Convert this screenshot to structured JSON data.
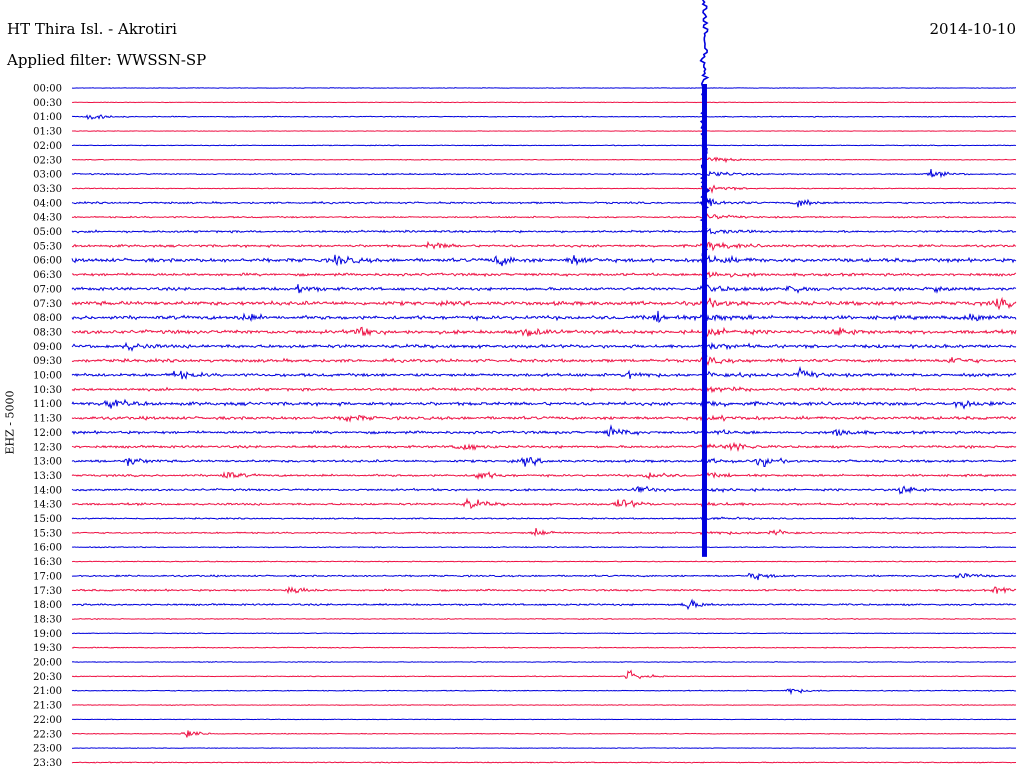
{
  "header": {
    "station": "HT Thira Isl. - Akrotiri",
    "date": "2014-10-10",
    "filter": "Applied filter: WWSSN-SP",
    "channel": "EHZ - 5000"
  },
  "colors": {
    "trace_a": "#0000dd",
    "trace_b": "#ee1144"
  },
  "chart_data": {
    "type": "line",
    "title": "HT Thira Isl. - Akrotiri",
    "date": "2014-10-10",
    "ylabel": "EHZ - 5000",
    "grid": false,
    "row_labels": [
      "00:00",
      "00:30",
      "01:00",
      "01:30",
      "02:00",
      "02:30",
      "03:00",
      "03:30",
      "04:00",
      "04:30",
      "05:00",
      "05:30",
      "06:00",
      "06:30",
      "07:00",
      "07:30",
      "08:00",
      "08:30",
      "09:00",
      "09:30",
      "10:00",
      "10:30",
      "11:00",
      "11:30",
      "12:00",
      "12:30",
      "13:00",
      "13:30",
      "14:00",
      "14:30",
      "15:00",
      "15:30",
      "16:00",
      "16:30",
      "17:00",
      "17:30",
      "18:00",
      "18:30",
      "19:00",
      "19:30",
      "20:00",
      "20:30",
      "21:00",
      "21:30",
      "22:00",
      "22:30",
      "23:00",
      "23:30"
    ],
    "noise_level": [
      0.4,
      0.4,
      0.6,
      0.4,
      0.5,
      0.5,
      0.9,
      0.6,
      1.2,
      1.0,
      1.4,
      1.6,
      2.4,
      1.8,
      2.0,
      2.6,
      2.4,
      2.4,
      2.2,
      2.0,
      2.0,
      1.8,
      2.2,
      2.0,
      1.8,
      1.6,
      1.6,
      1.4,
      1.4,
      1.4,
      0.9,
      1.0,
      0.7,
      0.6,
      1.1,
      1.2,
      1.2,
      0.6,
      0.5,
      0.6,
      0.5,
      0.5,
      0.6,
      0.5,
      0.4,
      0.5,
      0.4,
      0.6
    ],
    "events": [
      {
        "row": 2,
        "x": 0.02,
        "amp": 4
      },
      {
        "row": 6,
        "x": 0.91,
        "amp": 5
      },
      {
        "row": 8,
        "x": 0.77,
        "amp": 6
      },
      {
        "row": 11,
        "x": 0.38,
        "amp": 6
      },
      {
        "row": 12,
        "x": 0.28,
        "amp": 8
      },
      {
        "row": 12,
        "x": 0.45,
        "amp": 8
      },
      {
        "row": 12,
        "x": 0.53,
        "amp": 7
      },
      {
        "row": 14,
        "x": 0.24,
        "amp": 6
      },
      {
        "row": 14,
        "x": 0.76,
        "amp": 7
      },
      {
        "row": 14,
        "x": 0.91,
        "amp": 6
      },
      {
        "row": 15,
        "x": 0.98,
        "amp": 6
      },
      {
        "row": 16,
        "x": 0.18,
        "amp": 6
      },
      {
        "row": 16,
        "x": 0.62,
        "amp": 7
      },
      {
        "row": 16,
        "x": 0.95,
        "amp": 6
      },
      {
        "row": 17,
        "x": 0.3,
        "amp": 7
      },
      {
        "row": 17,
        "x": 0.48,
        "amp": 6
      },
      {
        "row": 17,
        "x": 0.81,
        "amp": 7
      },
      {
        "row": 18,
        "x": 0.06,
        "amp": 6
      },
      {
        "row": 19,
        "x": 0.93,
        "amp": 6
      },
      {
        "row": 20,
        "x": 0.11,
        "amp": 7
      },
      {
        "row": 20,
        "x": 0.59,
        "amp": 6
      },
      {
        "row": 20,
        "x": 0.77,
        "amp": 7
      },
      {
        "row": 22,
        "x": 0.04,
        "amp": 6
      },
      {
        "row": 22,
        "x": 0.94,
        "amp": 7
      },
      {
        "row": 23,
        "x": 0.29,
        "amp": 6
      },
      {
        "row": 24,
        "x": 0.57,
        "amp": 8
      },
      {
        "row": 24,
        "x": 0.81,
        "amp": 6
      },
      {
        "row": 25,
        "x": 0.41,
        "amp": 8
      },
      {
        "row": 25,
        "x": 0.7,
        "amp": 6
      },
      {
        "row": 26,
        "x": 0.06,
        "amp": 6
      },
      {
        "row": 26,
        "x": 0.48,
        "amp": 6
      },
      {
        "row": 26,
        "x": 0.73,
        "amp": 7
      },
      {
        "row": 27,
        "x": 0.16,
        "amp": 7
      },
      {
        "row": 27,
        "x": 0.43,
        "amp": 7
      },
      {
        "row": 27,
        "x": 0.61,
        "amp": 6
      },
      {
        "row": 28,
        "x": 0.6,
        "amp": 6
      },
      {
        "row": 28,
        "x": 0.88,
        "amp": 7
      },
      {
        "row": 29,
        "x": 0.42,
        "amp": 9
      },
      {
        "row": 29,
        "x": 0.58,
        "amp": 9
      },
      {
        "row": 31,
        "x": 0.49,
        "amp": 6
      },
      {
        "row": 31,
        "x": 0.74,
        "amp": 7
      },
      {
        "row": 34,
        "x": 0.72,
        "amp": 6
      },
      {
        "row": 34,
        "x": 0.94,
        "amp": 6
      },
      {
        "row": 35,
        "x": 0.23,
        "amp": 7
      },
      {
        "row": 35,
        "x": 0.98,
        "amp": 5
      },
      {
        "row": 36,
        "x": 0.65,
        "amp": 8
      },
      {
        "row": 41,
        "x": 0.59,
        "amp": 9
      },
      {
        "row": 42,
        "x": 0.76,
        "amp": 5
      },
      {
        "row": 45,
        "x": 0.12,
        "amp": 6
      }
    ],
    "main_event": {
      "x_fraction": 0.67,
      "peak_row": 6,
      "end_row": 31
    }
  }
}
